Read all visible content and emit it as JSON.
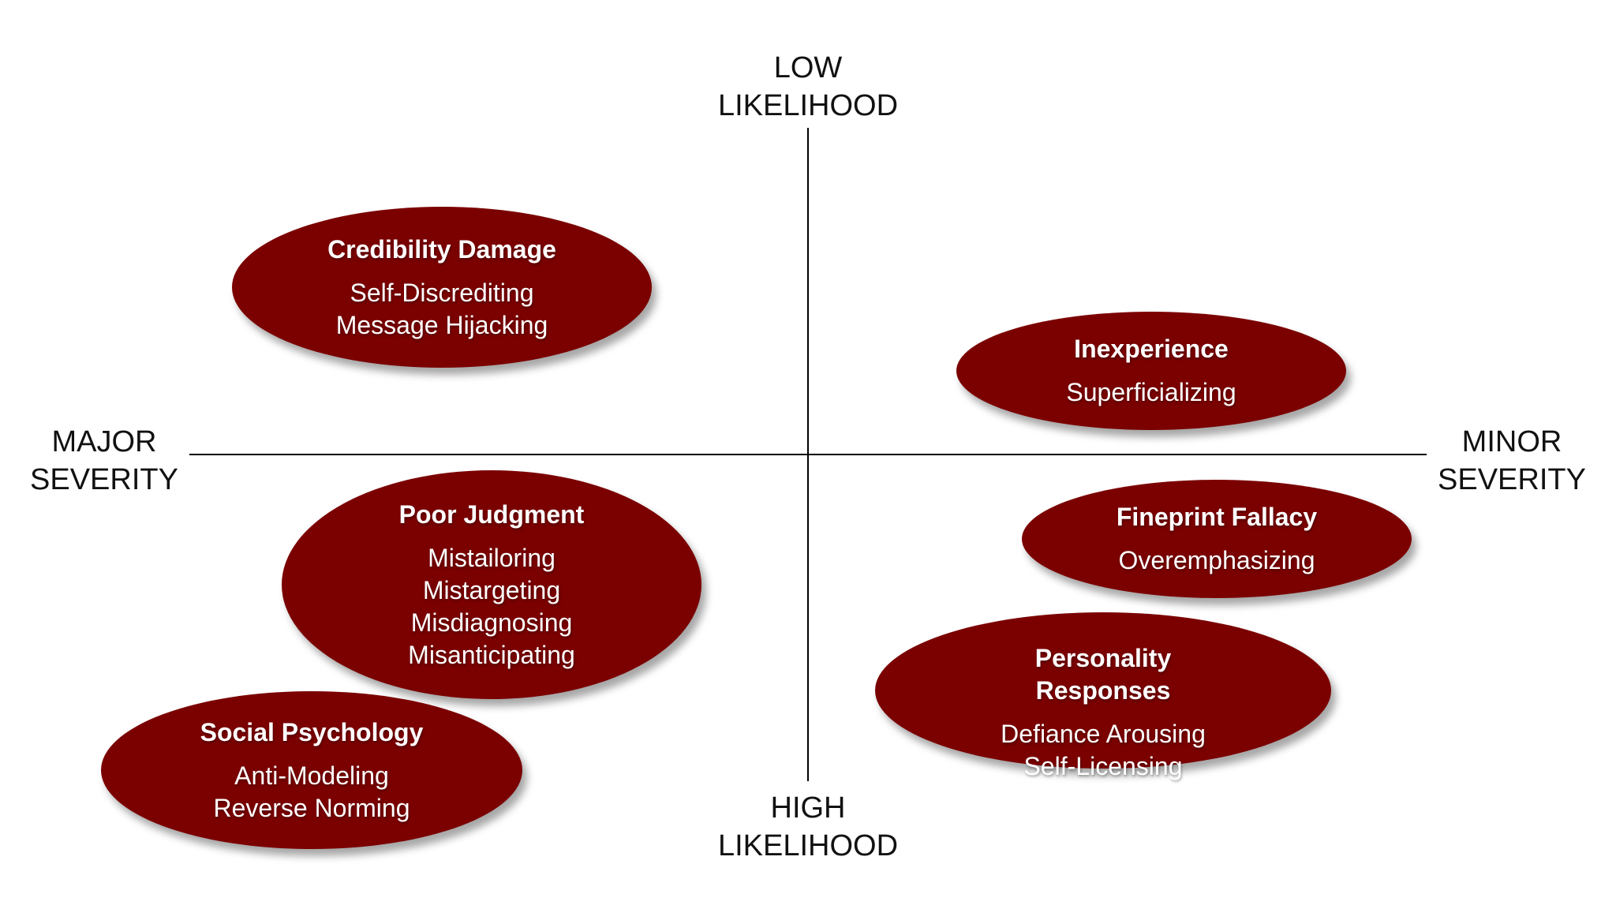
{
  "axes": {
    "top": [
      "LOW",
      "LIKELIHOOD"
    ],
    "bottom": [
      "HIGH",
      "LIKELIHOOD"
    ],
    "left": [
      "MAJOR",
      "SEVERITY"
    ],
    "right": [
      "MINOR",
      "SEVERITY"
    ]
  },
  "colors": {
    "bubble_fill": "#7b0000",
    "bubble_text": "#ffffff",
    "axis": "#000000"
  },
  "bubbles": {
    "credibility": {
      "title": "Credibility Damage",
      "items": [
        "Self-Discrediting",
        "Message Hijacking"
      ]
    },
    "inexperience": {
      "title": "Inexperience",
      "items": [
        "Superficializing"
      ]
    },
    "poor_judgment": {
      "title": "Poor Judgment",
      "items": [
        "Mistailoring",
        "Mistargeting",
        "Misdiagnosing",
        "Misanticipating"
      ]
    },
    "social_psychology": {
      "title": "Social Psychology",
      "items": [
        "Anti-Modeling",
        "Reverse Norming"
      ]
    },
    "fineprint": {
      "title": "Fineprint Fallacy",
      "items": [
        "Overemphasizing"
      ]
    },
    "personality": {
      "title_lines": [
        "Personality",
        "Responses"
      ],
      "items": [
        "Defiance Arousing",
        "Self-Licensing"
      ]
    }
  }
}
